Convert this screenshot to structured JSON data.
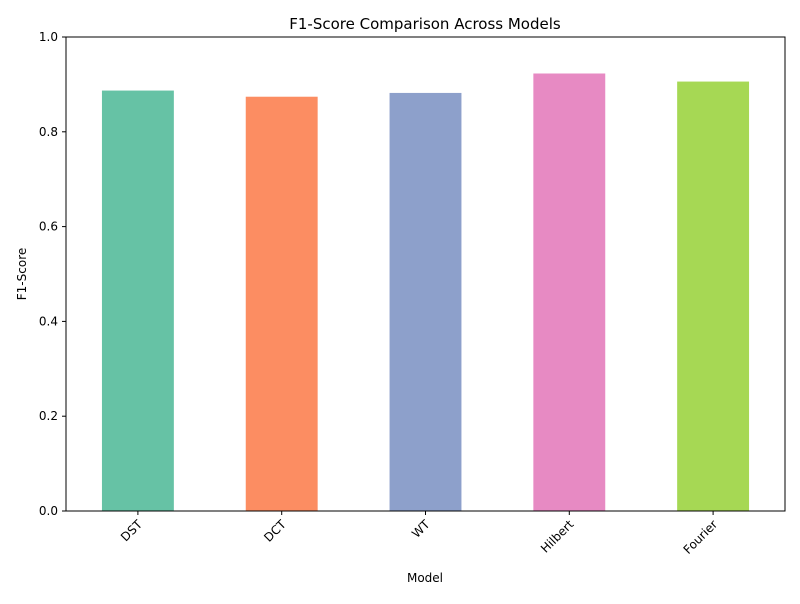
{
  "chart_data": {
    "type": "bar",
    "title": "F1-Score Comparison Across Models",
    "xlabel": "Model",
    "ylabel": "F1-Score",
    "categories": [
      "DST",
      "DCT",
      "WT",
      "Hilbert",
      "Fourier"
    ],
    "values": [
      0.887,
      0.874,
      0.882,
      0.923,
      0.906
    ],
    "colors": [
      "#66c2a5",
      "#fc8d62",
      "#8da0cb",
      "#e78ac3",
      "#a6d854"
    ],
    "ylim": [
      0,
      1.0
    ],
    "yticks": [
      "0.0",
      "0.2",
      "0.4",
      "0.6",
      "0.8",
      "1.0"
    ],
    "grid": false,
    "legend": "none"
  }
}
